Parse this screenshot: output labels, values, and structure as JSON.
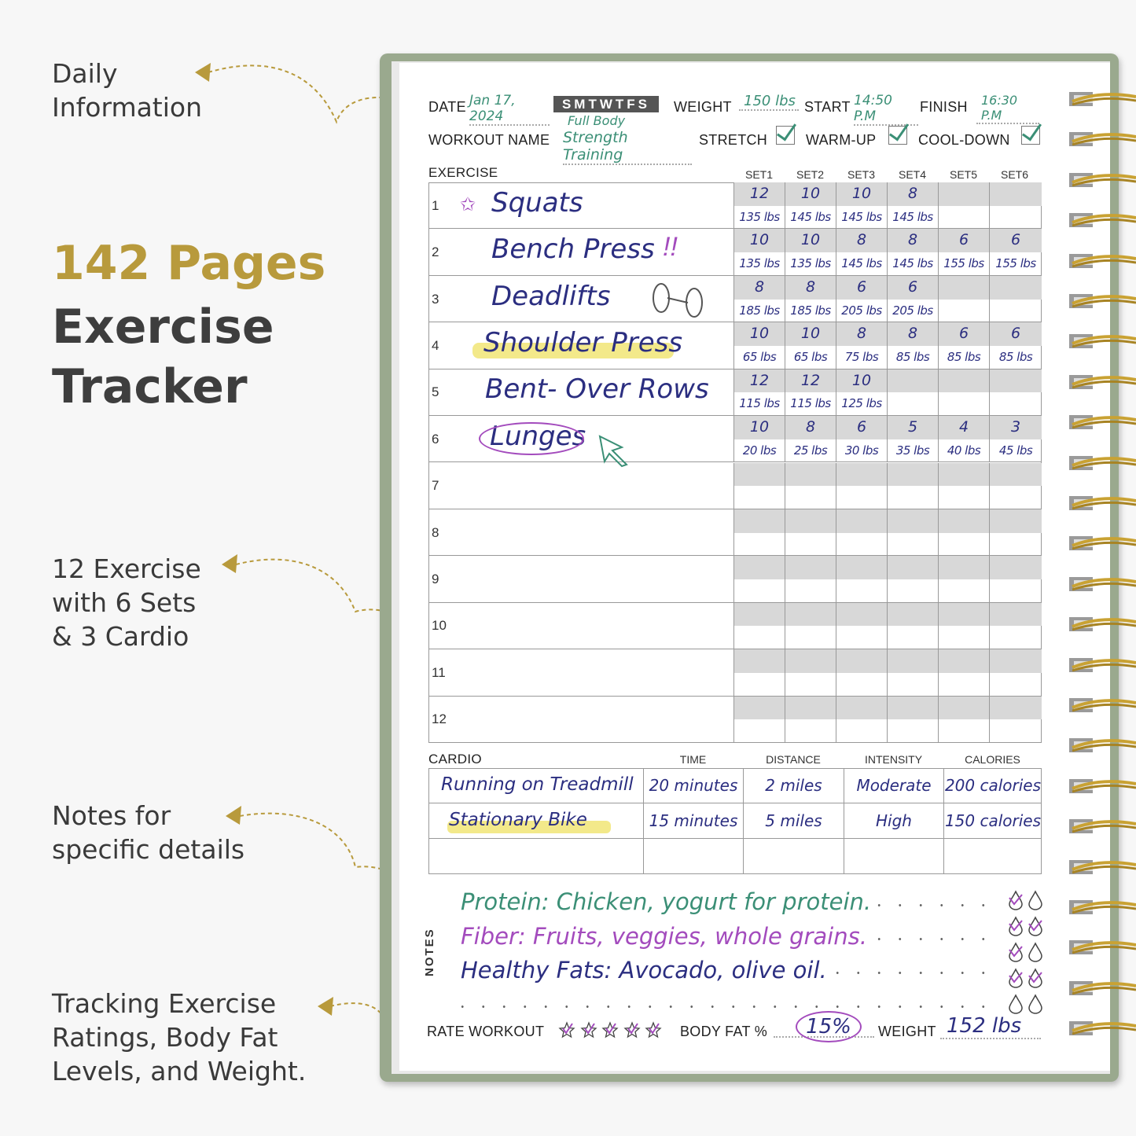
{
  "captions": {
    "daily": [
      "Daily",
      "Information"
    ],
    "pages_highlight": "142 Pages",
    "pages_title": [
      "Exercise",
      "Tracker"
    ],
    "exercise_count": [
      "12 Exercise",
      "with 6 Sets",
      "& 3 Cardio"
    ],
    "notes": [
      "Notes for",
      "specific details"
    ],
    "tracking": [
      "Tracking Exercise",
      "Ratings, Body Fat",
      "Levels, and Weight."
    ]
  },
  "colors": {
    "gold": "#b89a3c",
    "cover": "#9aa98e",
    "ink_green": "#3b8f76",
    "ink_navy": "#2b2e80",
    "ink_purple": "#a34bbd",
    "highlight": "#f3e98a"
  },
  "header": {
    "date_label": "DATE",
    "date": "Jan 17, 2024",
    "days": "SMTWTFS",
    "weight_label": "WEIGHT",
    "weight": "150 lbs",
    "start_label": "START",
    "start": "14:50 P.M",
    "finish_label": "FINISH",
    "finish": "16:30 P.M",
    "workout_label": "WORKOUT NAME",
    "workout_line1": "Full Body",
    "workout_line2": "Strength Training",
    "stretch_label": "STRETCH",
    "warmup_label": "WARM-UP",
    "cooldown_label": "COOL-DOWN",
    "stretch": true,
    "warmup": true,
    "cooldown": true
  },
  "exercise": {
    "label": "EXERCISE",
    "sets": [
      "SET1",
      "SET2",
      "SET3",
      "SET4",
      "SET5",
      "SET6"
    ],
    "rows": [
      {
        "n": "1",
        "name": "Squats",
        "icon": "star-icon",
        "reps": [
          "12",
          "10",
          "10",
          "8",
          "",
          ""
        ],
        "weights": [
          "135 lbs",
          "145 lbs",
          "145 lbs",
          "145 lbs",
          "",
          ""
        ]
      },
      {
        "n": "2",
        "name": "Bench Press",
        "icon": "exclamation-icon",
        "reps": [
          "10",
          "10",
          "8",
          "8",
          "6",
          "6"
        ],
        "weights": [
          "135 lbs",
          "135 lbs",
          "145 lbs",
          "145 lbs",
          "155 lbs",
          "155 lbs"
        ]
      },
      {
        "n": "3",
        "name": "Deadlifts",
        "icon": "dumbbell-icon",
        "reps": [
          "8",
          "8",
          "6",
          "6",
          "",
          ""
        ],
        "weights": [
          "185 lbs",
          "185 lbs",
          "205 lbs",
          "205 lbs",
          "",
          ""
        ]
      },
      {
        "n": "4",
        "name": "Shoulder Press",
        "icon": "highlight",
        "reps": [
          "10",
          "10",
          "8",
          "8",
          "6",
          "6"
        ],
        "weights": [
          "65 lbs",
          "65 lbs",
          "75 lbs",
          "85 lbs",
          "85 lbs",
          "85 lbs"
        ]
      },
      {
        "n": "5",
        "name": "Bent- Over Rows",
        "icon": "",
        "reps": [
          "12",
          "12",
          "10",
          "",
          "",
          ""
        ],
        "weights": [
          "115 lbs",
          "115 lbs",
          "125 lbs",
          "",
          "",
          ""
        ]
      },
      {
        "n": "6",
        "name": "Lunges",
        "icon": "circle-cursor-icon",
        "reps": [
          "10",
          "8",
          "6",
          "5",
          "4",
          "3"
        ],
        "weights": [
          "20 lbs",
          "25 lbs",
          "30 lbs",
          "35 lbs",
          "40 lbs",
          "45 lbs"
        ]
      },
      {
        "n": "7",
        "name": "",
        "reps": [
          "",
          "",
          "",
          "",
          "",
          ""
        ],
        "weights": [
          "",
          "",
          "",
          "",
          "",
          ""
        ]
      },
      {
        "n": "8",
        "name": "",
        "reps": [
          "",
          "",
          "",
          "",
          "",
          ""
        ],
        "weights": [
          "",
          "",
          "",
          "",
          "",
          ""
        ]
      },
      {
        "n": "9",
        "name": "",
        "reps": [
          "",
          "",
          "",
          "",
          "",
          ""
        ],
        "weights": [
          "",
          "",
          "",
          "",
          "",
          ""
        ]
      },
      {
        "n": "10",
        "name": "",
        "reps": [
          "",
          "",
          "",
          "",
          "",
          ""
        ],
        "weights": [
          "",
          "",
          "",
          "",
          "",
          ""
        ]
      },
      {
        "n": "11",
        "name": "",
        "reps": [
          "",
          "",
          "",
          "",
          "",
          ""
        ],
        "weights": [
          "",
          "",
          "",
          "",
          "",
          ""
        ]
      },
      {
        "n": "12",
        "name": "",
        "reps": [
          "",
          "",
          "",
          "",
          "",
          ""
        ],
        "weights": [
          "",
          "",
          "",
          "",
          "",
          ""
        ]
      }
    ]
  },
  "cardio": {
    "label": "CARDIO",
    "columns": [
      "TIME",
      "DISTANCE",
      "INTENSITY",
      "CALORIES"
    ],
    "rows": [
      {
        "name": "Running on Treadmill",
        "time": "20 minutes",
        "distance": "2 miles",
        "intensity": "Moderate",
        "calories": "200 calories"
      },
      {
        "name": "Stationary Bike",
        "time": "15 minutes",
        "distance": "5 miles",
        "intensity": "High",
        "calories": "150 calories"
      },
      {
        "name": "",
        "time": "",
        "distance": "",
        "intensity": "",
        "calories": ""
      }
    ]
  },
  "notes": {
    "label": "NOTES",
    "lines": [
      "Protein: Chicken, yogurt for protein.",
      "Fiber: Fruits, veggies, whole grains.",
      "Healthy Fats: Avocado, olive oil."
    ],
    "water": [
      [
        true,
        false
      ],
      [
        true,
        true
      ],
      [
        true,
        false
      ],
      [
        true,
        true
      ],
      [
        false,
        false
      ]
    ]
  },
  "footer": {
    "rate_label": "RATE WORKOUT",
    "rating": 5,
    "rating_max": 5,
    "bodyfat_label": "BODY FAT %",
    "bodyfat": "15%",
    "weight_label": "WEIGHT",
    "weight": "152 lbs"
  }
}
